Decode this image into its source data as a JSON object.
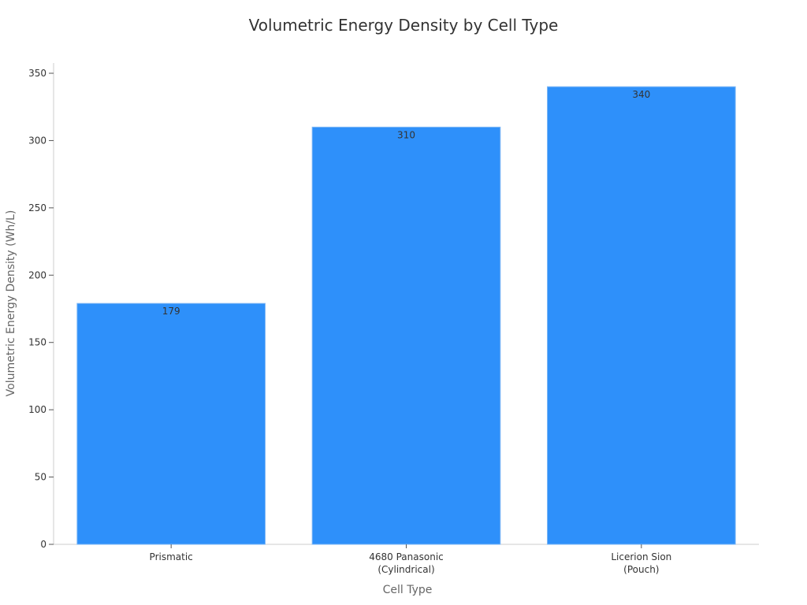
{
  "chart_data": {
    "type": "bar",
    "title": "Volumetric Energy Density by Cell Type",
    "xlabel": "Cell Type",
    "ylabel": "Volumetric Energy Density (Wh/L)",
    "categories": [
      "Prismatic",
      "4680 Panasonic (Cylindrical)",
      "Licerion Sion (Pouch)"
    ],
    "category_lines": [
      [
        "Prismatic"
      ],
      [
        "4680 Panasonic",
        "(Cylindrical)"
      ],
      [
        "Licerion Sion",
        "(Pouch)"
      ]
    ],
    "values": [
      179,
      310,
      340
    ],
    "data_labels": [
      "179",
      "310",
      "340"
    ],
    "ylim": [
      0,
      350
    ],
    "yticks": [
      0,
      50,
      100,
      150,
      200,
      250,
      300,
      350
    ],
    "grid": false,
    "legend": null,
    "bar_color": "#2e90fa"
  }
}
